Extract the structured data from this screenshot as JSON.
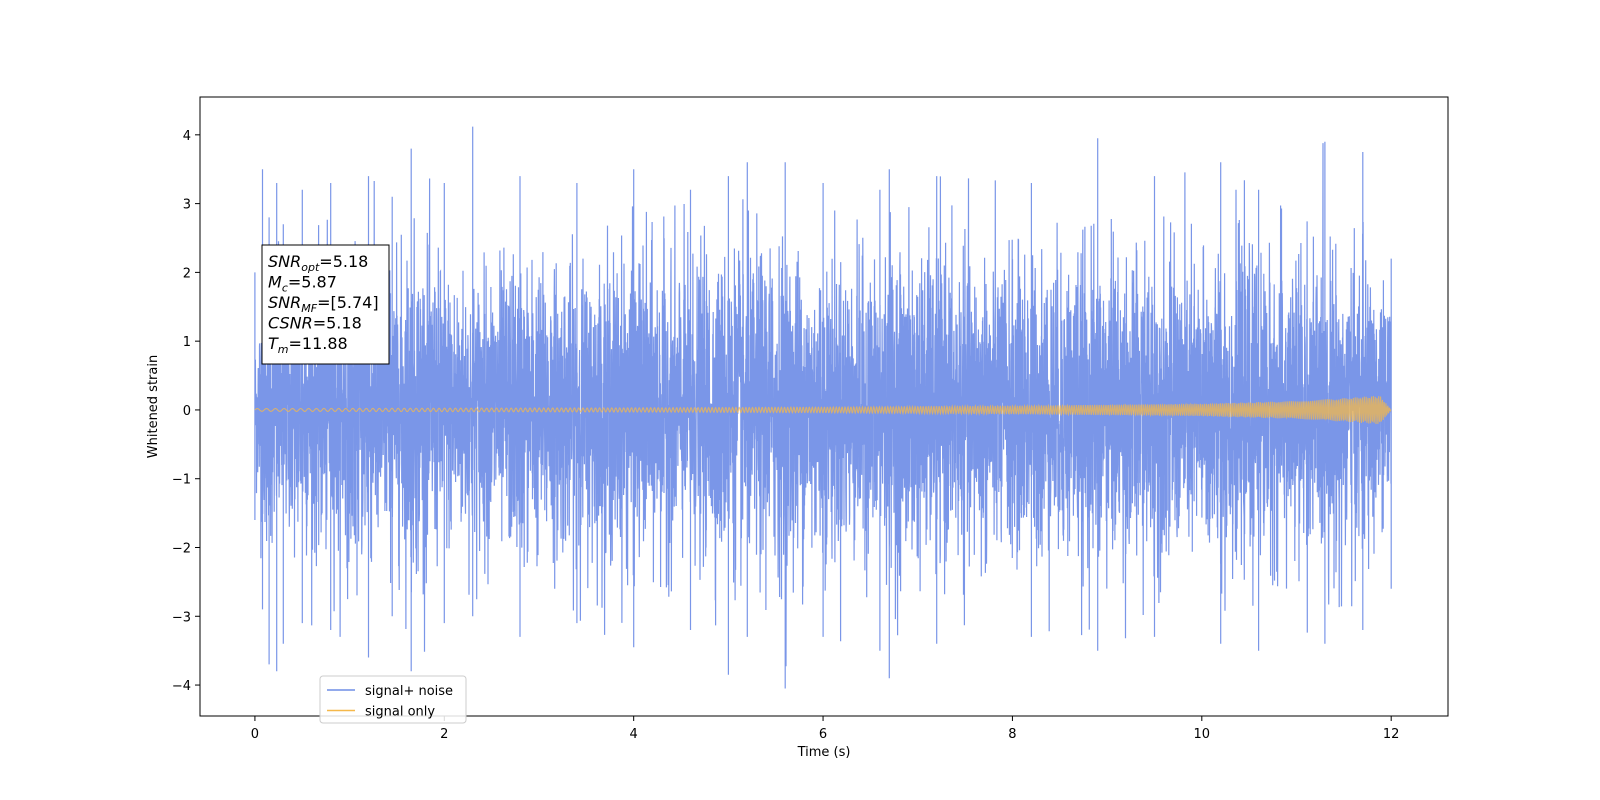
{
  "chart_data": {
    "type": "line",
    "title": "",
    "xlabel": "Time (s)",
    "ylabel": "Whitened strain",
    "xlim": [
      -0.58,
      12.6
    ],
    "ylim": [
      -4.45,
      4.55
    ],
    "xticks": [
      0,
      2,
      4,
      6,
      8,
      10,
      12
    ],
    "yticks": [
      -4,
      -3,
      -2,
      -1,
      0,
      1,
      2,
      3,
      4
    ],
    "grid": false,
    "legend_position": "lower-left",
    "series": [
      {
        "name": "signal+ noise",
        "color": "#6f8de6",
        "description": "whitened noise plus signal, 0 to 12 s",
        "x": [
          0,
          0.08,
          0.15,
          0.23,
          0.3,
          0.5,
          0.8,
          1.2,
          1.45,
          1.65,
          2.0,
          2.3,
          2.8,
          3.4,
          4.0,
          4.6,
          5.0,
          5.2,
          5.6,
          6.0,
          6.6,
          6.7,
          7.2,
          8.2,
          8.9,
          9.5,
          10.2,
          10.6,
          11.3,
          11.7,
          12.0
        ],
        "y_max": [
          2.0,
          3.5,
          2.8,
          3.3,
          2.7,
          3.2,
          3.3,
          3.4,
          3.1,
          3.8,
          3.3,
          4.12,
          3.4,
          3.3,
          3.5,
          3.2,
          3.4,
          3.6,
          3.6,
          3.3,
          3.2,
          3.5,
          3.4,
          3.3,
          3.95,
          3.4,
          3.6,
          3.2,
          3.9,
          3.75,
          2.2
        ],
        "y_min": [
          -1.6,
          -2.9,
          -3.7,
          -3.8,
          -3.4,
          -3.1,
          -3.2,
          -3.6,
          -3.0,
          -3.8,
          -3.1,
          -3.0,
          -3.3,
          -3.1,
          -3.45,
          -3.2,
          -3.85,
          -3.3,
          -4.05,
          -3.3,
          -3.5,
          -3.9,
          -3.4,
          -3.3,
          -3.5,
          -3.3,
          -3.4,
          -3.5,
          -3.4,
          -3.2,
          -2.6
        ]
      },
      {
        "name": "signal only",
        "color": "#f5b84a",
        "description": "chirp signal, amplitude growing to about 0.2 at 11.88 s",
        "x": [
          0,
          2,
          4,
          6,
          8,
          10,
          11,
          11.5,
          11.88,
          12.0
        ],
        "envelope": [
          0.02,
          0.025,
          0.03,
          0.04,
          0.06,
          0.09,
          0.13,
          0.17,
          0.21,
          0.0
        ]
      }
    ],
    "annotation": {
      "lines": [
        {
          "sym": "SNR",
          "sub": "opt",
          "value": "=5.18"
        },
        {
          "sym": "M",
          "sub": "c",
          "value": "=5.87"
        },
        {
          "sym": "SNR",
          "sub": "MF",
          "value": "=[5.74]"
        },
        {
          "sym": "CSNR",
          "sub": "",
          "value": "=5.18"
        },
        {
          "sym": "T",
          "sub": "m",
          "value": "=11.88"
        }
      ]
    }
  }
}
